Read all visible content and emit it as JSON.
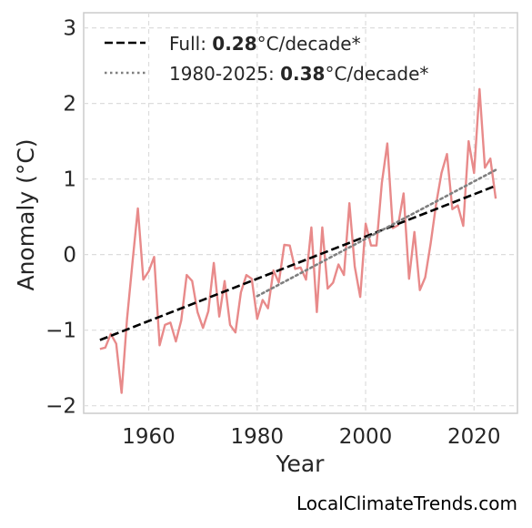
{
  "chart_data": {
    "type": "line",
    "xlabel": "Year",
    "ylabel": "Anomaly (°C)",
    "xlim": [
      1948,
      2028
    ],
    "ylim": [
      -2.1,
      3.2
    ],
    "x_ticks": [
      1960,
      1980,
      2000,
      2020
    ],
    "y_ticks": [
      -2,
      -1,
      0,
      1,
      2,
      3
    ],
    "x_tick_labels": [
      "1960",
      "1980",
      "2000",
      "2020"
    ],
    "y_tick_labels": [
      "−2",
      "−1",
      "0",
      "1",
      "2",
      "3"
    ],
    "grid": true,
    "legend_position": "top-left",
    "series": [
      {
        "style": "solid",
        "color": "#e88a8a",
        "x": [
          1951,
          1952,
          1953,
          1954,
          1955,
          1956,
          1957,
          1958,
          1959,
          1960,
          1961,
          1962,
          1963,
          1964,
          1965,
          1966,
          1967,
          1968,
          1969,
          1970,
          1971,
          1972,
          1973,
          1974,
          1975,
          1976,
          1977,
          1978,
          1979,
          1980,
          1981,
          1982,
          1983,
          1984,
          1985,
          1986,
          1987,
          1988,
          1989,
          1990,
          1991,
          1992,
          1993,
          1994,
          1995,
          1996,
          1997,
          1998,
          1999,
          2000,
          2001,
          2002,
          2003,
          2004,
          2005,
          2006,
          2007,
          2008,
          2009,
          2010,
          2011,
          2012,
          2013,
          2014,
          2015,
          2016,
          2017,
          2018,
          2019,
          2020,
          2021,
          2022,
          2023,
          2024
        ],
        "y": [
          -1.25,
          -1.23,
          -1.05,
          -1.18,
          -1.83,
          -0.85,
          -0.1,
          0.61,
          -0.33,
          -0.22,
          -0.03,
          -1.2,
          -0.93,
          -0.9,
          -1.15,
          -0.87,
          -0.27,
          -0.35,
          -0.76,
          -0.97,
          -0.75,
          -0.11,
          -0.82,
          -0.35,
          -0.93,
          -1.03,
          -0.5,
          -0.27,
          -0.32,
          -0.85,
          -0.6,
          -0.71,
          -0.21,
          -0.37,
          0.13,
          0.12,
          -0.19,
          -0.17,
          -0.33,
          0.36,
          -0.76,
          0.36,
          -0.45,
          -0.37,
          -0.13,
          -0.27,
          0.68,
          -0.16,
          -0.56,
          0.41,
          0.12,
          0.12,
          0.95,
          1.47,
          0.35,
          0.39,
          0.81,
          -0.32,
          0.3,
          -0.47,
          -0.3,
          0.15,
          0.67,
          1.08,
          1.33,
          0.6,
          0.65,
          0.38,
          1.5,
          1.08,
          2.19,
          1.15,
          1.27,
          0.74
        ]
      },
      {
        "style": "dashed",
        "color": "#000000",
        "x": [
          1951,
          2024
        ],
        "y": [
          -1.13,
          0.91
        ]
      },
      {
        "style": "dotted",
        "color": "#7f7f7f",
        "x": [
          1980,
          2024
        ],
        "y": [
          -0.55,
          1.12
        ]
      }
    ],
    "legend": [
      {
        "style": "dashed",
        "color": "#000000",
        "prefix": "Full: ",
        "value": "0.28",
        "suffix": "°C/decade*"
      },
      {
        "style": "dotted",
        "color": "#7f7f7f",
        "prefix": "1980-2025: ",
        "value": "0.38",
        "suffix": "°C/decade*"
      }
    ],
    "credit": "LocalClimateTrends.com"
  }
}
